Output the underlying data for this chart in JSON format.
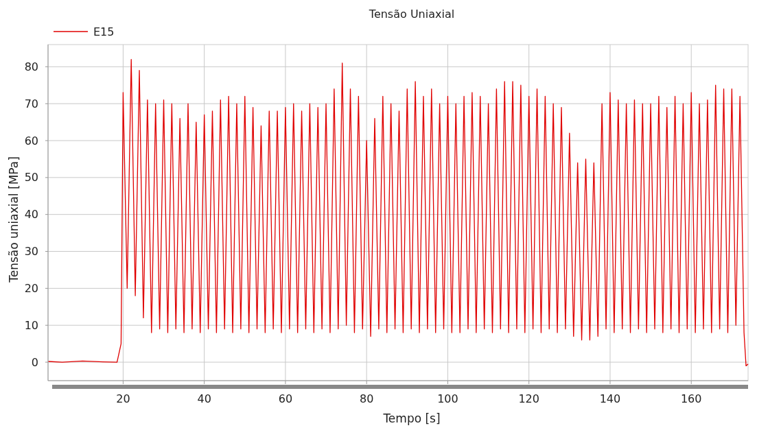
{
  "chart_data": {
    "type": "line",
    "title": "Tensão Uniaxial",
    "xlabel": "Tempo  [s]",
    "ylabel": "Tensão uniaxial  [MPa]",
    "xlim": [
      1.5,
      174
    ],
    "xticks": [
      20,
      40,
      60,
      80,
      100,
      120,
      140,
      160
    ],
    "ylim": [
      -5,
      86
    ],
    "yticks": [
      0,
      10,
      20,
      30,
      40,
      50,
      60,
      70,
      80
    ],
    "grid": true,
    "legend": "top left",
    "marker": "none",
    "line_style": "solid",
    "series": [
      {
        "name": "E15",
        "color": "#e00000",
        "x": [
          1.6,
          5,
          10,
          15,
          18.5,
          19.5,
          20,
          21,
          22,
          23,
          24,
          25,
          26,
          27,
          28,
          29,
          30,
          31,
          32,
          33,
          34,
          35,
          36,
          37,
          38,
          39,
          40,
          41,
          42,
          43,
          44,
          45,
          46,
          47,
          48,
          49,
          50,
          51,
          52,
          53,
          54,
          55,
          56,
          57,
          58,
          59,
          60,
          61,
          62,
          63,
          64,
          65,
          66,
          67,
          68,
          69,
          70,
          71,
          72,
          73,
          74,
          75,
          76,
          77,
          78,
          79,
          80,
          81,
          82,
          83,
          84,
          85,
          86,
          87,
          88,
          89,
          90,
          91,
          92,
          93,
          94,
          95,
          96,
          97,
          98,
          99,
          100,
          101,
          102,
          103,
          104,
          105,
          106,
          107,
          108,
          109,
          110,
          111,
          112,
          113,
          114,
          115,
          116,
          117,
          118,
          119,
          120,
          121,
          122,
          123,
          124,
          125,
          126,
          127,
          128,
          129,
          130,
          131,
          132,
          133,
          134,
          135,
          136,
          137,
          138,
          139,
          140,
          141,
          142,
          143,
          144,
          145,
          146,
          147,
          148,
          149,
          150,
          151,
          152,
          153,
          154,
          155,
          156,
          157,
          158,
          159,
          160,
          161,
          162,
          163,
          164,
          165,
          166,
          167,
          168,
          169,
          170,
          171,
          172,
          173,
          173.5,
          174
        ],
        "values": [
          0.2,
          0,
          0.3,
          0.1,
          0,
          5,
          73,
          20,
          82,
          18,
          79,
          12,
          71,
          8,
          70,
          9,
          71,
          8,
          70,
          9,
          66,
          8,
          70,
          9,
          65,
          8,
          67,
          9,
          68,
          8,
          71,
          9,
          72,
          8,
          70,
          9,
          72,
          8,
          69,
          9,
          64,
          8,
          68,
          9,
          68,
          8,
          69,
          9,
          70,
          8,
          68,
          9,
          70,
          8,
          69,
          9,
          70,
          8,
          74,
          9,
          81,
          10,
          74,
          8,
          72,
          9,
          60,
          7,
          66,
          9,
          72,
          8,
          70,
          9,
          68,
          8,
          74,
          9,
          76,
          8,
          72,
          9,
          74,
          8,
          70,
          9,
          72,
          8,
          70,
          8,
          72,
          9,
          73,
          8,
          72,
          9,
          70,
          8,
          74,
          9,
          76,
          8,
          76,
          9,
          75,
          8,
          72,
          9,
          74,
          8,
          72,
          9,
          70,
          8,
          69,
          9,
          62,
          7,
          54,
          6,
          55,
          6,
          54,
          7,
          70,
          9,
          73,
          8,
          71,
          9,
          70,
          8,
          71,
          9,
          70,
          8,
          70,
          9,
          72,
          8,
          69,
          9,
          72,
          8,
          70,
          9,
          73,
          8,
          70,
          9,
          71,
          8,
          75,
          9,
          74,
          8,
          74,
          10,
          72,
          8,
          -1,
          -0.5
        ]
      }
    ]
  }
}
